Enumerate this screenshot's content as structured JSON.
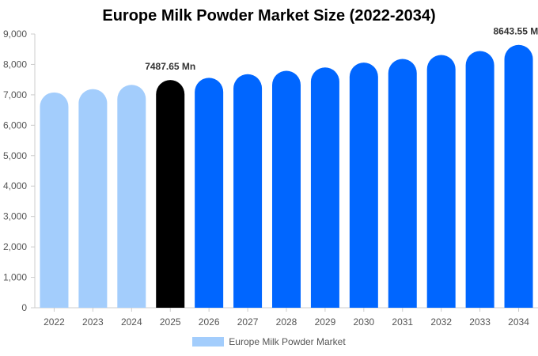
{
  "chart_data": {
    "type": "bar",
    "title": "Europe Milk Powder Market Size (2022-2034)",
    "categories": [
      "2022",
      "2023",
      "2024",
      "2025",
      "2026",
      "2027",
      "2028",
      "2029",
      "2030",
      "2031",
      "2032",
      "2033",
      "2034"
    ],
    "series": [
      {
        "name": "Europe Milk Powder Market",
        "values": [
          7080,
          7190,
          7330,
          7487.65,
          7560,
          7680,
          7790,
          7900,
          8060,
          8180,
          8310,
          8440,
          8643.55
        ]
      }
    ],
    "bar_colors": [
      "#a3cdfc",
      "#a3cdfc",
      "#a3cdfc",
      "#000000",
      "#0066ff",
      "#0066ff",
      "#0066ff",
      "#0066ff",
      "#0066ff",
      "#0066ff",
      "#0066ff",
      "#0066ff",
      "#0066ff"
    ],
    "data_labels": {
      "3": "7487.65 Mn",
      "12": "8643.55 Mn"
    },
    "ylim": [
      0,
      9000
    ],
    "yticks": [
      0,
      1000,
      2000,
      3000,
      4000,
      5000,
      6000,
      7000,
      8000,
      9000
    ],
    "ytick_labels": [
      "0",
      "1,000",
      "2,000",
      "3,000",
      "4,000",
      "5,000",
      "6,000",
      "7,000",
      "8,000",
      "9,000"
    ],
    "xlabel": "",
    "ylabel": "",
    "grid": false,
    "legend": {
      "position": "bottom-center",
      "label": "Europe Milk Powder Market",
      "color": "#a3cdfc"
    }
  }
}
